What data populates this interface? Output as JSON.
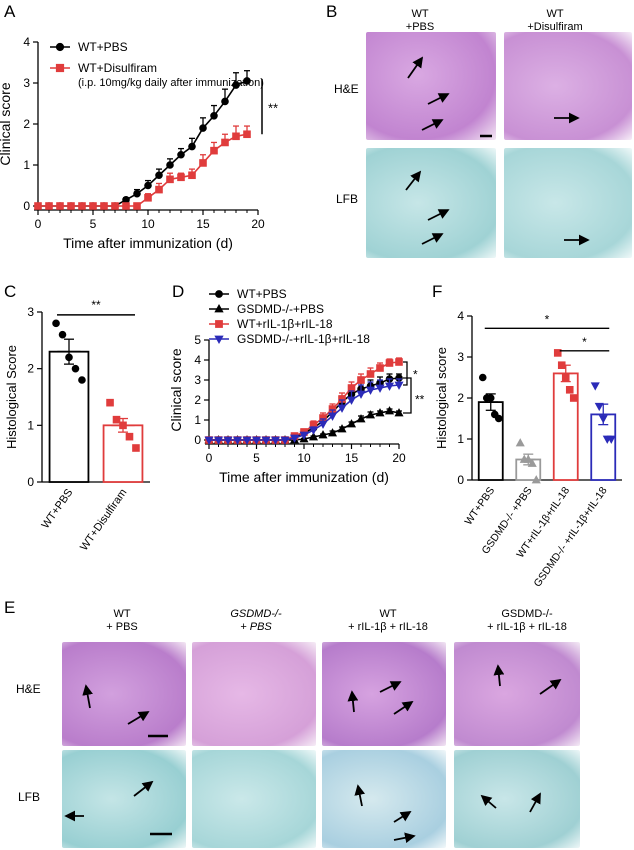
{
  "panel_labels": {
    "A": "A",
    "B": "B",
    "C": "C",
    "D": "D",
    "E": "E",
    "F": "F"
  },
  "micro_B": {
    "cols": [
      "WT\n+PBS",
      "WT\n+Disulfiram"
    ],
    "rows": [
      "H&E",
      "LFB"
    ],
    "stain_colors": {
      "he": "#c98fd6",
      "lfb": "#a8d9da"
    }
  },
  "micro_E": {
    "cols": [
      "WT\n+ PBS",
      "GSDMD-/-\n+ PBS",
      "WT\n+ rIL-1β + rIL-18",
      "GSDMD-/-\n+ rIL-1β + rIL-18"
    ],
    "rows": [
      "H&E",
      "LFB"
    ]
  },
  "chart_data": [
    {
      "panel": "A",
      "type": "line",
      "xlabel": "Time after immunization (d)",
      "ylabel": "Clinical score",
      "xlim": [
        0,
        20
      ],
      "ylim": [
        0,
        4
      ],
      "xticks": [
        0,
        5,
        10,
        15,
        20
      ],
      "yticks": [
        0,
        1,
        2,
        3,
        4
      ],
      "x": [
        0,
        1,
        2,
        3,
        4,
        5,
        6,
        7,
        8,
        9,
        10,
        11,
        12,
        13,
        14,
        15,
        16,
        17,
        18,
        19
      ],
      "series": [
        {
          "name": "WT+PBS",
          "color": "#000000",
          "marker": "circle",
          "values": [
            0,
            0,
            0,
            0,
            0,
            0,
            0,
            0,
            0.15,
            0.3,
            0.5,
            0.75,
            1.0,
            1.25,
            1.45,
            1.9,
            2.2,
            2.55,
            2.95,
            3.05
          ],
          "err": [
            0,
            0,
            0,
            0,
            0,
            0,
            0,
            0,
            0.05,
            0.1,
            0.12,
            0.15,
            0.15,
            0.15,
            0.2,
            0.25,
            0.25,
            0.3,
            0.3,
            0.25
          ]
        },
        {
          "name": "WT+Disulfiram",
          "name_note": "(i.p. 10mg/kg daily after immunization)",
          "color": "#e03c3c",
          "marker": "square",
          "values": [
            0,
            0,
            0,
            0,
            0,
            0,
            0,
            0,
            0,
            0,
            0.2,
            0.4,
            0.65,
            0.7,
            0.75,
            1.05,
            1.35,
            1.55,
            1.7,
            1.75
          ],
          "err": [
            0,
            0,
            0,
            0,
            0,
            0,
            0,
            0,
            0,
            0,
            0.1,
            0.15,
            0.15,
            0.1,
            0.15,
            0.2,
            0.2,
            0.2,
            0.25,
            0.2
          ]
        }
      ],
      "significance": "**"
    },
    {
      "panel": "C",
      "type": "bar",
      "ylabel": "Histological Score",
      "ylim": [
        0,
        3
      ],
      "yticks": [
        0,
        1,
        2,
        3
      ],
      "categories": [
        "WT+PBS",
        "WT+Disulfiram"
      ],
      "values": [
        2.3,
        1.0
      ],
      "err": [
        0.22,
        0.12
      ],
      "colors": [
        "#000000",
        "#e03c3c"
      ],
      "markers": [
        "circle",
        "square"
      ],
      "points": [
        [
          2.8,
          2.6,
          2.2,
          2.0,
          1.8
        ],
        [
          1.4,
          1.1,
          1.0,
          0.8,
          0.6
        ]
      ],
      "significance": "**"
    },
    {
      "panel": "D",
      "type": "line",
      "xlabel": "Time after immunization (d)",
      "ylabel": "Clinical score",
      "xlim": [
        0,
        20
      ],
      "ylim": [
        0,
        5
      ],
      "xticks": [
        0,
        5,
        10,
        15,
        20
      ],
      "yticks": [
        0,
        1,
        2,
        3,
        4,
        5
      ],
      "x": [
        0,
        1,
        2,
        3,
        4,
        5,
        6,
        7,
        8,
        9,
        10,
        11,
        12,
        13,
        14,
        15,
        16,
        17,
        18,
        19,
        20
      ],
      "series": [
        {
          "name": "WT+PBS",
          "color": "#000000",
          "marker": "circle",
          "values": [
            0,
            0,
            0,
            0,
            0,
            0,
            0,
            0,
            0,
            0.15,
            0.35,
            0.6,
            0.95,
            1.4,
            1.9,
            2.3,
            2.55,
            2.7,
            2.85,
            3.05,
            3.1
          ],
          "err": [
            0,
            0,
            0,
            0,
            0,
            0,
            0,
            0,
            0,
            0.05,
            0.1,
            0.15,
            0.2,
            0.25,
            0.3,
            0.3,
            0.3,
            0.3,
            0.3,
            0.25,
            0.2
          ]
        },
        {
          "name": "GSDMD-/-+PBS",
          "color": "#000000",
          "marker": "triangle",
          "values": [
            0,
            0,
            0,
            0,
            0,
            0,
            0,
            0,
            0,
            0,
            0.05,
            0.15,
            0.25,
            0.35,
            0.55,
            0.8,
            1.05,
            1.25,
            1.35,
            1.45,
            1.35
          ],
          "err": [
            0,
            0,
            0,
            0,
            0,
            0,
            0,
            0,
            0,
            0,
            0.03,
            0.05,
            0.05,
            0.1,
            0.1,
            0.1,
            0.15,
            0.15,
            0.1,
            0.1,
            0.1
          ]
        },
        {
          "name": "WT+rIL-1β+rIL-18",
          "color": "#e03c3c",
          "marker": "square",
          "values": [
            0,
            0,
            0,
            0,
            0,
            0,
            0,
            0,
            0,
            0.2,
            0.4,
            0.75,
            1.1,
            1.55,
            2.05,
            2.6,
            3.0,
            3.3,
            3.6,
            3.85,
            3.9
          ],
          "err": [
            0,
            0,
            0,
            0,
            0,
            0,
            0,
            0,
            0,
            0.1,
            0.15,
            0.2,
            0.25,
            0.25,
            0.3,
            0.3,
            0.3,
            0.3,
            0.25,
            0.2,
            0.2
          ]
        },
        {
          "name": "GSDMD-/-+rIL-1β+rIL-18",
          "color": "#2b2bb8",
          "marker": "triangle-down",
          "values": [
            0,
            0,
            0,
            0,
            0,
            0,
            0,
            0,
            0,
            0.1,
            0.25,
            0.5,
            0.8,
            1.2,
            1.6,
            2.0,
            2.3,
            2.5,
            2.6,
            2.7,
            2.75
          ],
          "err": [
            0,
            0,
            0,
            0,
            0,
            0,
            0,
            0,
            0,
            0.05,
            0.1,
            0.15,
            0.25,
            0.3,
            0.4,
            0.45,
            0.45,
            0.4,
            0.4,
            0.35,
            0.3
          ]
        }
      ],
      "significance": [
        "*",
        "**"
      ]
    },
    {
      "panel": "F",
      "type": "bar",
      "ylabel": "Histological score",
      "ylim": [
        0,
        4
      ],
      "yticks": [
        0,
        1,
        2,
        3,
        4
      ],
      "categories": [
        "WT+PBS",
        "GSDMD-/- +PBS",
        "WT+rIL-1β+rIL-18",
        "GSDMD-/- +rIL-1β+rIL-18"
      ],
      "values": [
        1.9,
        0.5,
        2.6,
        1.6
      ],
      "err": [
        0.2,
        0.13,
        0.2,
        0.25
      ],
      "colors": [
        "#000000",
        "#9a9a9a",
        "#e03c3c",
        "#2b2bb8"
      ],
      "markers": [
        "circle",
        "triangle",
        "square",
        "triangle-down"
      ],
      "points": [
        [
          2.5,
          2.0,
          2.0,
          1.6,
          1.5
        ],
        [
          0.9,
          0.5,
          0.5,
          0.4,
          0.0
        ],
        [
          3.1,
          2.8,
          2.5,
          2.2,
          2.0
        ],
        [
          2.3,
          1.8,
          1.5,
          1.0,
          1.0
        ]
      ],
      "significance": [
        "*",
        "*"
      ]
    }
  ]
}
